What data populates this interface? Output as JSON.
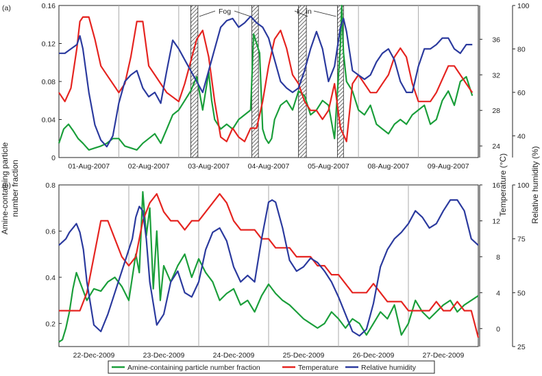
{
  "figure": {
    "left_axis_label_line1": "Amine-containing particle",
    "left_axis_label_line2": "number fraction",
    "temp_axis_label": "Temperature (°C)",
    "rh_axis_label": "Relative humidity (%)",
    "colors": {
      "amine": "#1a9e3a",
      "temperature": "#e52420",
      "rh": "#2b3a9e"
    }
  },
  "legend": {
    "amine": "Amine-containing particle number fraction",
    "temperature": "Temperature",
    "rh": "Relative humidity"
  },
  "chart_data": [
    {
      "type": "line",
      "panel_label": "(a)",
      "categories": [
        "01-Aug-2007",
        "02-Aug-2007",
        "03-Aug-2007",
        "04-Aug-2007",
        "05-Aug-2007",
        "08-Aug-2007",
        "09-Aug-2007"
      ],
      "left_axis": {
        "range": [
          0,
          0.16
        ],
        "ticks": [
          "0",
          "0.04",
          "0.08",
          "0.12",
          "0.16"
        ]
      },
      "temp_axis": {
        "range": [
          22.7,
          39.8
        ],
        "ticks": [
          "24",
          "28",
          "32",
          "36"
        ]
      },
      "rh_axis": {
        "range": [
          30,
          100
        ],
        "ticks": [
          "40",
          "60",
          "80",
          "100"
        ]
      },
      "annotations": [
        {
          "text": "Fog",
          "band_days": [
            2.2,
            3.3
          ]
        },
        {
          "text": "Rain",
          "band_days": [
            4.0,
            4.75
          ]
        }
      ],
      "shaded_bands_days": [
        [
          2.2,
          2.32
        ],
        [
          3.22,
          3.33
        ],
        [
          4.0,
          4.13
        ],
        [
          4.65,
          4.75
        ]
      ],
      "series": [
        {
          "name": "Amine-containing particle number fraction",
          "axis": "left",
          "x": [
            0,
            0.08,
            0.16,
            0.24,
            0.32,
            0.4,
            0.5,
            0.6,
            0.7,
            0.8,
            0.9,
            1,
            1.1,
            1.2,
            1.3,
            1.4,
            1.5,
            1.6,
            1.7,
            1.8,
            1.9,
            2,
            2.1,
            2.2,
            2.3,
            2.4,
            2.5,
            2.55,
            2.6,
            2.7,
            2.8,
            2.9,
            3,
            3.1,
            3.2,
            3.25,
            3.35,
            3.4,
            3.45,
            3.5,
            3.55,
            3.6,
            3.7,
            3.8,
            3.9,
            4,
            4.1,
            4.2,
            4.3,
            4.4,
            4.5,
            4.6,
            4.7,
            4.72,
            4.75,
            4.8,
            4.9,
            5,
            5.1,
            5.2,
            5.3,
            5.4,
            5.5,
            5.6,
            5.7,
            5.8,
            5.9,
            6,
            6.1,
            6.2,
            6.3,
            6.4,
            6.5,
            6.6,
            6.7,
            6.8,
            6.9
          ],
          "y": [
            0.015,
            0.03,
            0.035,
            0.028,
            0.02,
            0.015,
            0.008,
            0.01,
            0.012,
            0.015,
            0.02,
            0.02,
            0.012,
            0.01,
            0.008,
            0.015,
            0.02,
            0.025,
            0.015,
            0.03,
            0.045,
            0.05,
            0.06,
            0.07,
            0.085,
            0.05,
            0.09,
            0.06,
            0.04,
            0.03,
            0.035,
            0.03,
            0.04,
            0.045,
            0.05,
            0.13,
            0.11,
            0.03,
            0.02,
            0.015,
            0.02,
            0.04,
            0.055,
            0.06,
            0.05,
            0.07,
            0.065,
            0.045,
            0.05,
            0.06,
            0.055,
            0.02,
            0.12,
            0.16,
            0.11,
            0.08,
            0.07,
            0.05,
            0.045,
            0.055,
            0.035,
            0.03,
            0.025,
            0.035,
            0.04,
            0.035,
            0.045,
            0.05,
            0.055,
            0.035,
            0.04,
            0.06,
            0.07,
            0.055,
            0.08,
            0.085,
            0.065
          ]
        },
        {
          "name": "Temperature",
          "axis": "temp",
          "x": [
            0,
            0.1,
            0.2,
            0.3,
            0.35,
            0.4,
            0.5,
            0.6,
            0.7,
            0.8,
            0.9,
            1,
            1.1,
            1.2,
            1.3,
            1.4,
            1.5,
            1.6,
            1.7,
            1.8,
            2,
            2.1,
            2.2,
            2.3,
            2.4,
            2.5,
            2.6,
            2.7,
            2.8,
            2.9,
            3,
            3.1,
            3.2,
            3.3,
            3.4,
            3.5,
            3.6,
            3.7,
            3.8,
            3.9,
            4,
            4.1,
            4.2,
            4.3,
            4.4,
            4.5,
            4.6,
            4.7,
            4.8,
            4.9,
            5,
            5.1,
            5.2,
            5.3,
            5.4,
            5.5,
            5.6,
            5.7,
            5.8,
            5.9,
            6,
            6.1,
            6.2,
            6.3,
            6.4,
            6.5,
            6.6,
            6.7,
            6.8,
            6.9
          ],
          "y": [
            30,
            29,
            30.5,
            35,
            38,
            38.5,
            38.5,
            36,
            33,
            32,
            31,
            30,
            31,
            34,
            38,
            38,
            33,
            32,
            31,
            30,
            29,
            31,
            33.5,
            36,
            37,
            34,
            29,
            25,
            24.5,
            26,
            25,
            24.5,
            26,
            26,
            29,
            33,
            36,
            37,
            35,
            32,
            31,
            29,
            28,
            28,
            27,
            28,
            31,
            26,
            24.5,
            31,
            32,
            31,
            30,
            30,
            31,
            32,
            34,
            35,
            34,
            31,
            29,
            29,
            29,
            30,
            31.5,
            33,
            33,
            32,
            31,
            30
          ]
        },
        {
          "name": "Relative humidity",
          "axis": "rh",
          "x": [
            0,
            0.1,
            0.2,
            0.3,
            0.35,
            0.4,
            0.5,
            0.6,
            0.7,
            0.8,
            0.9,
            1,
            1.1,
            1.2,
            1.3,
            1.4,
            1.5,
            1.6,
            1.7,
            1.8,
            1.9,
            2,
            2.1,
            2.2,
            2.3,
            2.4,
            2.5,
            2.6,
            2.7,
            2.8,
            2.9,
            3,
            3.1,
            3.2,
            3.3,
            3.4,
            3.5,
            3.6,
            3.7,
            3.8,
            3.9,
            4,
            4.1,
            4.2,
            4.3,
            4.4,
            4.5,
            4.6,
            4.7,
            4.75,
            4.8,
            4.9,
            5,
            5.1,
            5.2,
            5.3,
            5.4,
            5.5,
            5.6,
            5.7,
            5.8,
            5.9,
            6,
            6.1,
            6.2,
            6.3,
            6.4,
            6.5,
            6.6,
            6.7,
            6.8,
            6.9
          ],
          "y": [
            78,
            78,
            80,
            82,
            86,
            80,
            60,
            45,
            38,
            35,
            40,
            55,
            65,
            68,
            70,
            62,
            58,
            60,
            55,
            70,
            84,
            80,
            75,
            70,
            65,
            60,
            70,
            80,
            90,
            93,
            94,
            90,
            92,
            95,
            92,
            90,
            85,
            75,
            65,
            62,
            60,
            62,
            70,
            80,
            88,
            80,
            65,
            72,
            90,
            94,
            88,
            70,
            68,
            66,
            68,
            74,
            78,
            80,
            75,
            65,
            60,
            60,
            72,
            80,
            80,
            82,
            85,
            85,
            80,
            78,
            82,
            82
          ]
        }
      ]
    },
    {
      "type": "line",
      "panel_label": "(b)",
      "categories": [
        "22-Dec-2009",
        "23-Dec-2009",
        "24-Dec-2009",
        "25-Dec-2009",
        "26-Dec-2009",
        "27-Dec-2009"
      ],
      "left_axis": {
        "range": [
          0.1,
          0.8
        ],
        "ticks": [
          "0.2",
          "0.4",
          "0.6",
          "0.8"
        ]
      },
      "temp_axis": {
        "range": [
          -2,
          16
        ],
        "ticks": [
          "0",
          "4",
          "8",
          "12",
          "16"
        ]
      },
      "rh_axis": {
        "range": [
          25,
          100
        ],
        "ticks": [
          "25",
          "50",
          "75",
          "100"
        ]
      },
      "series": [
        {
          "name": "Amine-containing particle number fraction",
          "axis": "left",
          "x": [
            0,
            0.05,
            0.1,
            0.15,
            0.2,
            0.25,
            0.3,
            0.4,
            0.5,
            0.6,
            0.7,
            0.8,
            0.9,
            1,
            1.1,
            1.15,
            1.2,
            1.25,
            1.3,
            1.35,
            1.4,
            1.45,
            1.5,
            1.6,
            1.7,
            1.8,
            1.9,
            2,
            2.1,
            2.2,
            2.3,
            2.4,
            2.5,
            2.6,
            2.7,
            2.8,
            2.9,
            3,
            3.1,
            3.2,
            3.3,
            3.4,
            3.5,
            3.6,
            3.7,
            3.8,
            3.9,
            4,
            4.1,
            4.2,
            4.3,
            4.4,
            4.5,
            4.6,
            4.7,
            4.8,
            4.9,
            5,
            5.1,
            5.2,
            5.3,
            5.4,
            5.5,
            5.6,
            5.7,
            5.8,
            5.9,
            6
          ],
          "y": [
            0.12,
            0.13,
            0.18,
            0.25,
            0.35,
            0.42,
            0.38,
            0.3,
            0.35,
            0.34,
            0.38,
            0.4,
            0.36,
            0.3,
            0.5,
            0.42,
            0.77,
            0.58,
            0.7,
            0.35,
            0.6,
            0.3,
            0.45,
            0.38,
            0.45,
            0.5,
            0.4,
            0.48,
            0.42,
            0.38,
            0.3,
            0.33,
            0.35,
            0.28,
            0.3,
            0.25,
            0.32,
            0.37,
            0.33,
            0.3,
            0.28,
            0.25,
            0.22,
            0.2,
            0.18,
            0.2,
            0.25,
            0.22,
            0.18,
            0.22,
            0.2,
            0.15,
            0.2,
            0.25,
            0.22,
            0.28,
            0.15,
            0.2,
            0.3,
            0.25,
            0.22,
            0.25,
            0.28,
            0.3,
            0.25,
            0.28,
            0.3,
            0.32
          ]
        },
        {
          "name": "Temperature",
          "axis": "temp",
          "x": [
            0,
            0.1,
            0.2,
            0.3,
            0.4,
            0.5,
            0.6,
            0.7,
            0.8,
            0.9,
            1,
            1.1,
            1.2,
            1.3,
            1.4,
            1.5,
            1.6,
            1.7,
            1.8,
            1.9,
            2,
            2.1,
            2.2,
            2.3,
            2.4,
            2.5,
            2.6,
            2.7,
            2.8,
            2.9,
            3,
            3.1,
            3.2,
            3.3,
            3.4,
            3.5,
            3.6,
            3.7,
            3.8,
            3.9,
            4,
            4.1,
            4.2,
            4.3,
            4.4,
            4.5,
            4.6,
            4.7,
            4.8,
            4.9,
            5,
            5.1,
            5.2,
            5.3,
            5.4,
            5.5,
            5.6,
            5.7,
            5.8,
            5.9,
            6
          ],
          "y": [
            2,
            2,
            2,
            2,
            4,
            8,
            12,
            12,
            10,
            8,
            7,
            8,
            12,
            14,
            15,
            13,
            12,
            12,
            11,
            12,
            12,
            13,
            14,
            15,
            14,
            12,
            11,
            11,
            11,
            10,
            10,
            9,
            9,
            9,
            8,
            8,
            8,
            7,
            7,
            6,
            6,
            5,
            4,
            4,
            4,
            5,
            4,
            3,
            3,
            3,
            2,
            2,
            2,
            2,
            3,
            2,
            2,
            3,
            2,
            2,
            -1
          ]
        },
        {
          "name": "Relative humidity",
          "axis": "rh",
          "x": [
            0,
            0.1,
            0.15,
            0.2,
            0.25,
            0.3,
            0.35,
            0.4,
            0.5,
            0.6,
            0.7,
            0.8,
            0.9,
            1,
            1.05,
            1.1,
            1.15,
            1.2,
            1.25,
            1.3,
            1.4,
            1.5,
            1.6,
            1.7,
            1.8,
            1.9,
            2,
            2.1,
            2.2,
            2.3,
            2.4,
            2.5,
            2.6,
            2.7,
            2.8,
            2.9,
            3,
            3.05,
            3.1,
            3.2,
            3.3,
            3.4,
            3.5,
            3.6,
            3.7,
            3.8,
            3.9,
            4,
            4.1,
            4.2,
            4.3,
            4.4,
            4.5,
            4.6,
            4.7,
            4.8,
            4.9,
            5,
            5.1,
            5.2,
            5.3,
            5.4,
            5.5,
            5.6,
            5.7,
            5.8,
            5.9,
            6
          ],
          "y": [
            72,
            75,
            78,
            80,
            82,
            78,
            70,
            55,
            35,
            32,
            40,
            50,
            60,
            70,
            75,
            85,
            90,
            88,
            75,
            55,
            35,
            40,
            55,
            60,
            50,
            48,
            55,
            70,
            78,
            80,
            74,
            62,
            55,
            58,
            55,
            75,
            92,
            93,
            92,
            80,
            65,
            60,
            62,
            66,
            64,
            60,
            55,
            48,
            40,
            32,
            30,
            33,
            45,
            62,
            70,
            75,
            78,
            82,
            88,
            85,
            80,
            82,
            88,
            93,
            93,
            88,
            75,
            72
          ]
        }
      ]
    }
  ]
}
